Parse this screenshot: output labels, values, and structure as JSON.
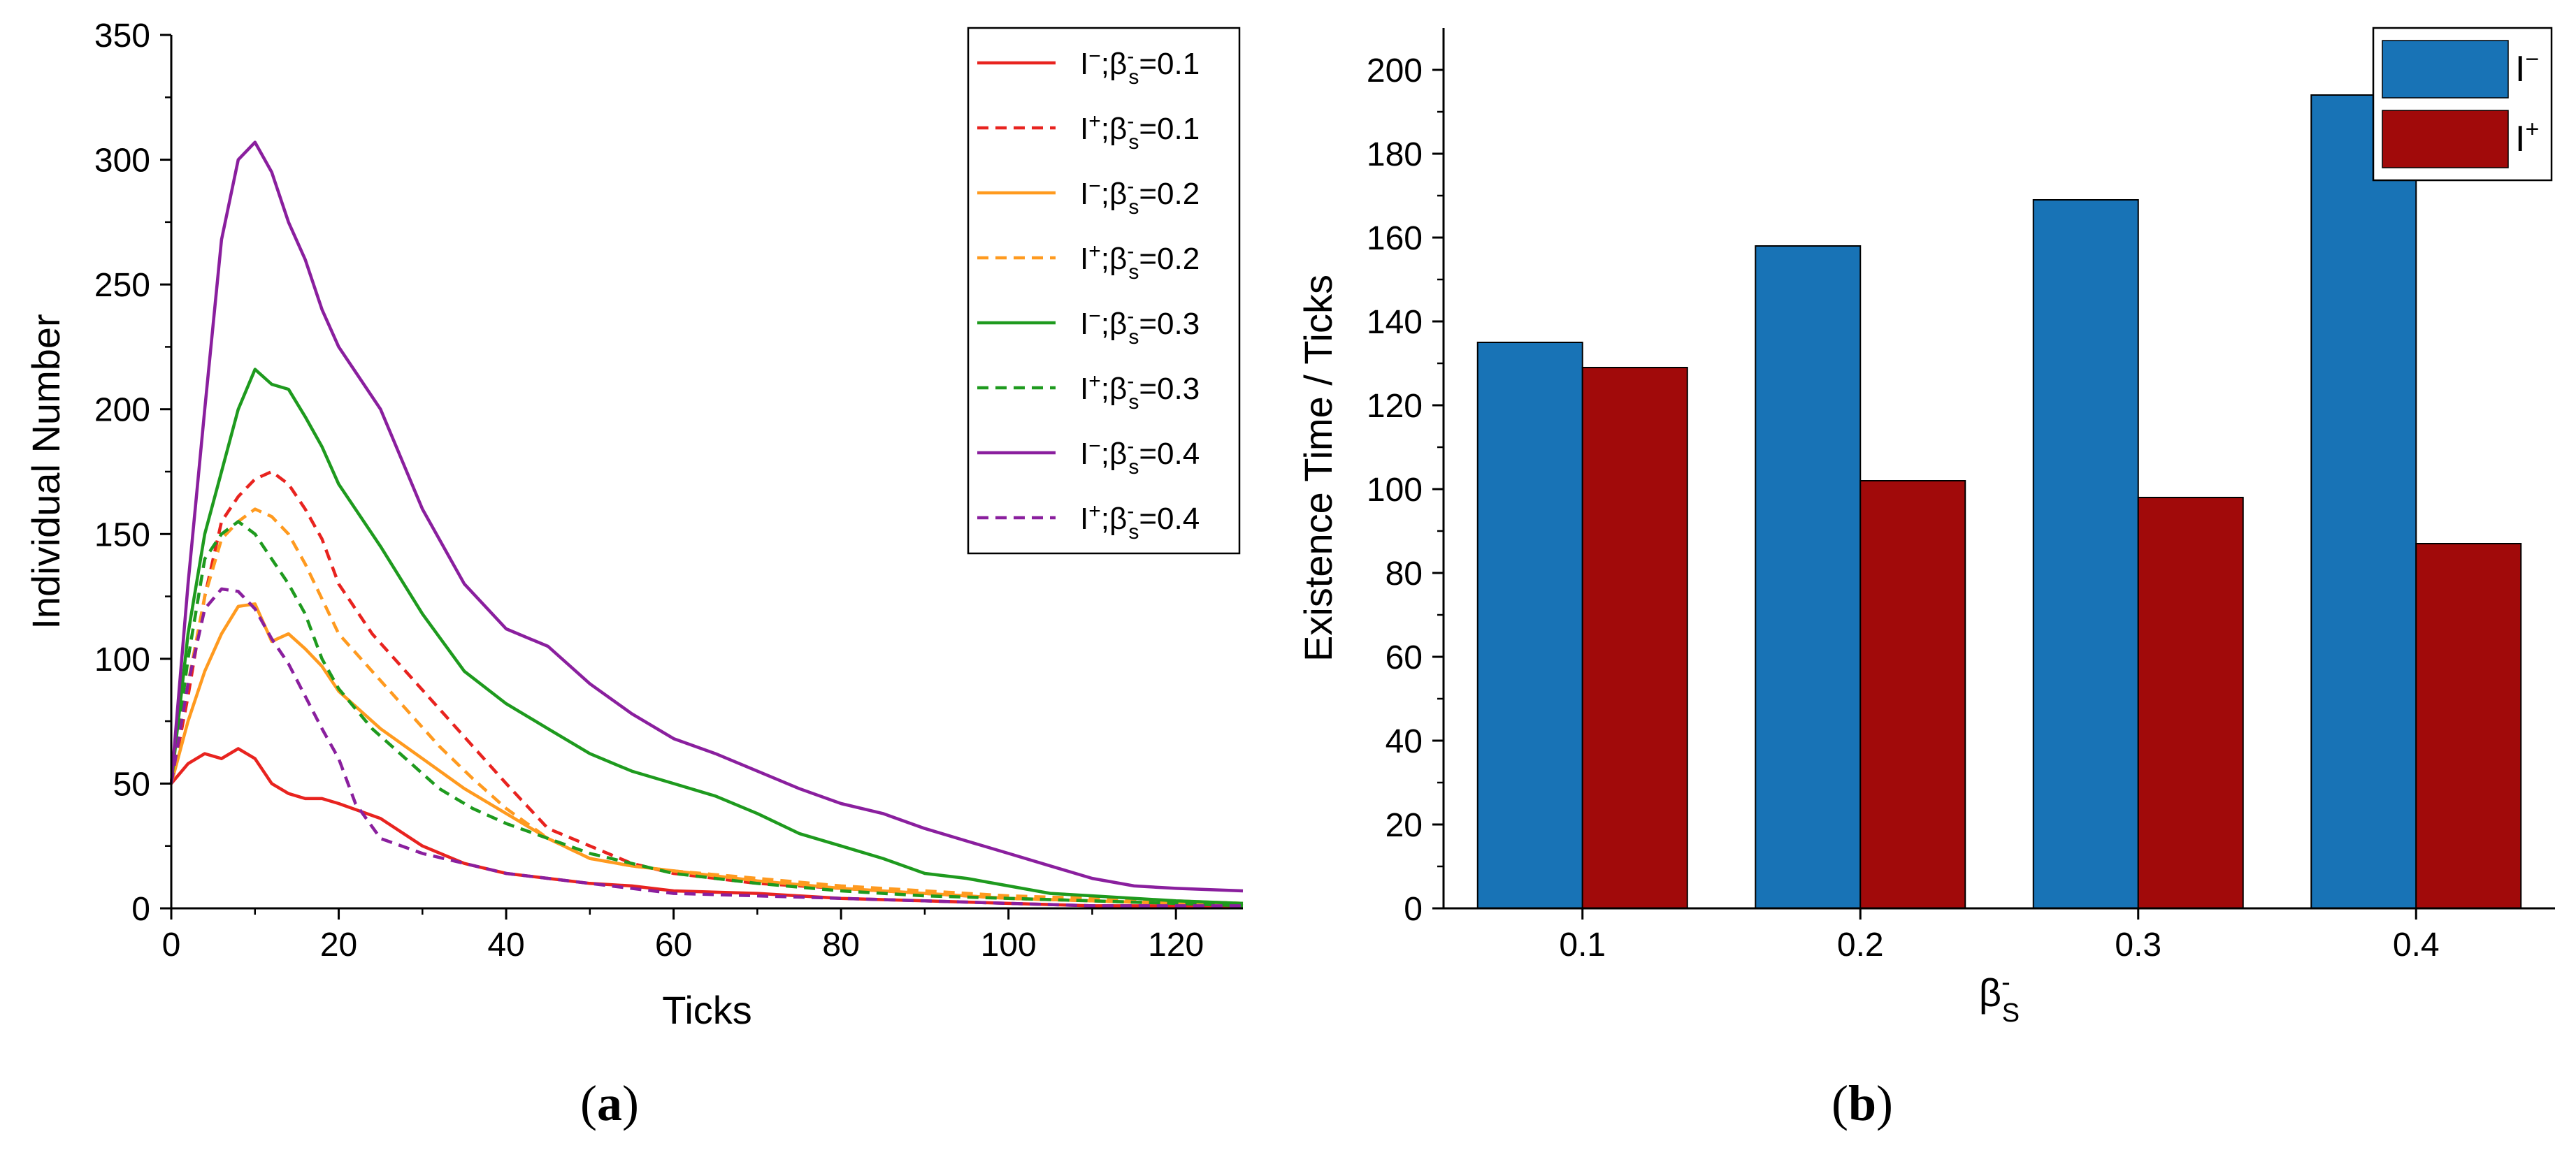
{
  "colors": {
    "red": "#e8231f",
    "orange": "#ff9a1f",
    "green": "#1e9a1e",
    "purple": "#8a1f9e",
    "blue": "#1873b6",
    "darkred": "#a10a0a"
  },
  "captions": {
    "a": "a",
    "b": "b"
  },
  "chart_data": [
    {
      "type": "line",
      "panel": "a",
      "xlabel": "Ticks",
      "ylabel": "Individual Number",
      "xlim": [
        0,
        128
      ],
      "ylim": [
        0,
        350
      ],
      "xticks": [
        0,
        20,
        40,
        60,
        80,
        100,
        120
      ],
      "yticks": [
        0,
        50,
        100,
        150,
        200,
        250,
        300,
        350
      ],
      "legend_position": "top-right",
      "series": [
        {
          "name_main": "I",
          "name_sup": "−",
          "name_beta": "β",
          "name_bsup": "-",
          "name_bsub": "s",
          "name_value": "=0.1",
          "color": "#e8231f",
          "dashed": false,
          "x": [
            0,
            2,
            4,
            6,
            8,
            10,
            12,
            14,
            16,
            18,
            20,
            25,
            30,
            35,
            40,
            45,
            50,
            55,
            60,
            70,
            80,
            90,
            100,
            110,
            120,
            128
          ],
          "y": [
            50,
            58,
            62,
            60,
            64,
            60,
            50,
            46,
            44,
            44,
            42,
            36,
            25,
            18,
            14,
            12,
            10,
            9,
            7,
            6,
            4,
            3,
            2,
            1,
            1,
            1
          ]
        },
        {
          "name_main": "I",
          "name_sup": "+",
          "name_beta": "β",
          "name_bsup": "-",
          "name_bsub": "s",
          "name_value": "=0.1",
          "color": "#e8231f",
          "dashed": true,
          "x": [
            0,
            2,
            4,
            6,
            8,
            10,
            12,
            14,
            16,
            18,
            20,
            24,
            28,
            32,
            36,
            40,
            45,
            50,
            55,
            60,
            70,
            80,
            90,
            100,
            110,
            120,
            128
          ],
          "y": [
            50,
            85,
            125,
            155,
            165,
            172,
            175,
            170,
            160,
            148,
            130,
            110,
            95,
            80,
            65,
            50,
            32,
            25,
            18,
            14,
            10,
            8,
            6,
            4,
            3,
            2,
            1
          ]
        },
        {
          "name_main": "I",
          "name_sup": "−",
          "name_beta": "β",
          "name_bsup": "-",
          "name_bsub": "s",
          "name_value": "=0.2",
          "color": "#ff9a1f",
          "dashed": false,
          "x": [
            0,
            2,
            4,
            6,
            8,
            10,
            12,
            14,
            16,
            18,
            20,
            25,
            30,
            35,
            40,
            45,
            50,
            55,
            60,
            70,
            80,
            90,
            100,
            110,
            120,
            128
          ],
          "y": [
            50,
            75,
            95,
            110,
            121,
            122,
            107,
            110,
            104,
            97,
            87,
            72,
            60,
            48,
            38,
            28,
            20,
            17,
            15,
            11,
            8,
            6,
            4,
            3,
            2,
            2
          ]
        },
        {
          "name_main": "I",
          "name_sup": "+",
          "name_beta": "β",
          "name_bsup": "-",
          "name_bsub": "s",
          "name_value": "=0.2",
          "color": "#ff9a1f",
          "dashed": true,
          "x": [
            0,
            2,
            4,
            6,
            8,
            10,
            12,
            14,
            16,
            18,
            20,
            24,
            28,
            32,
            36,
            40,
            45,
            50,
            55,
            60,
            70,
            80,
            90,
            100,
            110,
            120,
            128
          ],
          "y": [
            50,
            90,
            125,
            148,
            155,
            160,
            157,
            150,
            138,
            124,
            110,
            95,
            80,
            65,
            52,
            40,
            28,
            20,
            17,
            15,
            12,
            9,
            7,
            5,
            4,
            3,
            2
          ]
        },
        {
          "name_main": "I",
          "name_sup": "−",
          "name_beta": "β",
          "name_bsup": "-",
          "name_bsub": "s",
          "name_value": "=0.3",
          "color": "#1e9a1e",
          "dashed": false,
          "x": [
            0,
            2,
            4,
            6,
            8,
            10,
            12,
            14,
            16,
            18,
            20,
            25,
            30,
            35,
            40,
            45,
            50,
            55,
            60,
            65,
            70,
            75,
            80,
            85,
            90,
            95,
            100,
            105,
            110,
            120,
            128
          ],
          "y": [
            50,
            110,
            150,
            175,
            200,
            216,
            210,
            208,
            197,
            185,
            170,
            145,
            118,
            95,
            82,
            72,
            62,
            55,
            50,
            45,
            38,
            30,
            25,
            20,
            14,
            12,
            9,
            6,
            5,
            3,
            2
          ]
        },
        {
          "name_main": "I",
          "name_sup": "+",
          "name_beta": "β",
          "name_bsup": "-",
          "name_bsub": "s",
          "name_value": "=0.3",
          "color": "#1e9a1e",
          "dashed": true,
          "x": [
            0,
            2,
            4,
            6,
            8,
            10,
            12,
            14,
            16,
            18,
            20,
            24,
            28,
            32,
            36,
            40,
            45,
            50,
            55,
            60,
            70,
            80,
            90,
            100,
            110,
            120,
            128
          ],
          "y": [
            50,
            100,
            140,
            150,
            155,
            150,
            140,
            130,
            118,
            100,
            88,
            72,
            60,
            48,
            40,
            34,
            28,
            22,
            18,
            14,
            10,
            7,
            5,
            4,
            3,
            2,
            1
          ]
        },
        {
          "name_main": "I",
          "name_sup": "−",
          "name_beta": "β",
          "name_bsup": "-",
          "name_bsub": "s",
          "name_value": "=0.4",
          "color": "#8a1f9e",
          "dashed": false,
          "x": [
            0,
            2,
            4,
            6,
            8,
            10,
            12,
            14,
            16,
            18,
            20,
            25,
            30,
            35,
            40,
            45,
            50,
            55,
            60,
            65,
            70,
            75,
            80,
            85,
            90,
            95,
            100,
            105,
            110,
            115,
            120,
            128
          ],
          "y": [
            50,
            130,
            200,
            268,
            300,
            307,
            295,
            275,
            260,
            240,
            225,
            200,
            160,
            130,
            112,
            105,
            90,
            78,
            68,
            62,
            55,
            48,
            42,
            38,
            32,
            27,
            22,
            17,
            12,
            9,
            8,
            7
          ]
        },
        {
          "name_main": "I",
          "name_sup": "+",
          "name_beta": "β",
          "name_bsup": "-",
          "name_bsub": "s",
          "name_value": "=0.4",
          "color": "#8a1f9e",
          "dashed": true,
          "x": [
            0,
            2,
            4,
            6,
            8,
            10,
            12,
            14,
            16,
            18,
            20,
            22,
            25,
            30,
            35,
            40,
            45,
            50,
            60,
            70,
            80,
            90,
            100,
            110,
            120,
            128
          ],
          "y": [
            50,
            90,
            120,
            128,
            127,
            120,
            108,
            98,
            85,
            72,
            60,
            42,
            28,
            22,
            18,
            14,
            12,
            10,
            6,
            5,
            4,
            3,
            2,
            1,
            1,
            1
          ]
        }
      ]
    },
    {
      "type": "bar",
      "panel": "b",
      "xlabel_main": "β",
      "xlabel_sup": "-",
      "xlabel_sub": "S",
      "ylabel": "Existence Time / Ticks",
      "categories": [
        "0.1",
        "0.2",
        "0.3",
        "0.4"
      ],
      "ylim": [
        0,
        210
      ],
      "yticks": [
        0,
        20,
        40,
        60,
        80,
        100,
        120,
        140,
        160,
        180,
        200
      ],
      "legend_position": "top-right",
      "series": [
        {
          "name_main": "I",
          "name_sup": "−",
          "color": "#1873b6",
          "values": [
            135,
            158,
            169,
            194
          ]
        },
        {
          "name_main": "I",
          "name_sup": "+",
          "color": "#a10a0a",
          "values": [
            129,
            102,
            98,
            87
          ]
        }
      ]
    }
  ]
}
